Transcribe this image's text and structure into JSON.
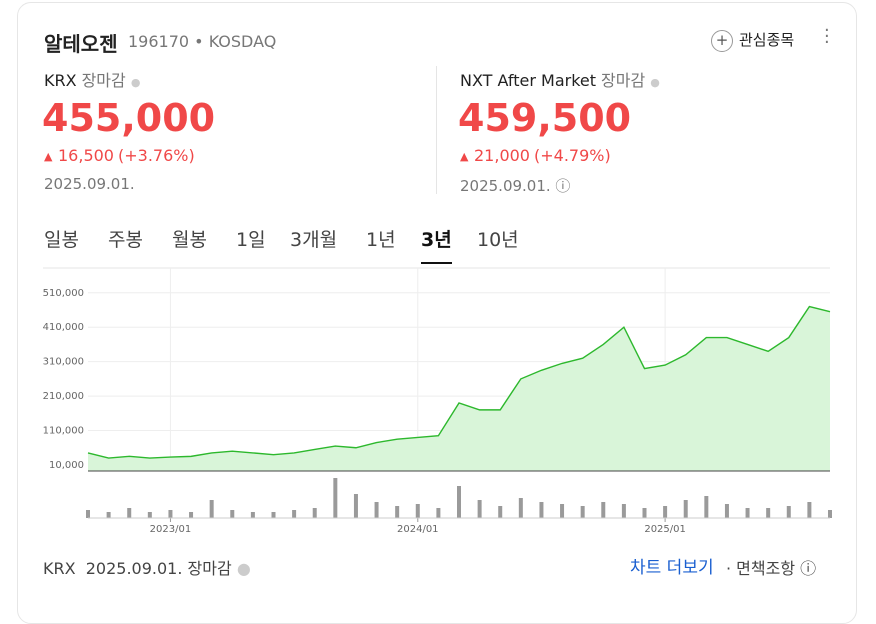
{
  "header": {
    "name": "알테오젠",
    "code": "196170",
    "market": "KOSDAQ",
    "watch": "관심종목"
  },
  "quotes": [
    {
      "exchange": "KRX",
      "status": "장마감",
      "price": "455,000",
      "change": "16,500",
      "rate": "(+3.76%)",
      "date": "2025.09.01."
    },
    {
      "exchange": "NXT After Market",
      "status": "장마감",
      "price": "459,500",
      "change": "21,000",
      "rate": "(+4.79%)",
      "date": "2025.09.01."
    }
  ],
  "tabs": [
    "일봉",
    "주봉",
    "월봉",
    "1일",
    "3개월",
    "1년",
    "3년",
    "10년"
  ],
  "selected_tab": "3년",
  "chart_data": {
    "type": "line",
    "color": "#2db82d",
    "fill": "#d9f5d9",
    "bar_color": "#9a9a9a",
    "x": [
      "2022/09",
      "2022/10",
      "2022/11",
      "2022/12",
      "2023/01",
      "2023/02",
      "2023/03",
      "2023/04",
      "2023/05",
      "2023/06",
      "2023/07",
      "2023/08",
      "2023/09",
      "2023/10",
      "2023/11",
      "2023/12",
      "2024/01",
      "2024/02",
      "2024/03",
      "2024/04",
      "2024/05",
      "2024/06",
      "2024/07",
      "2024/08",
      "2024/09",
      "2024/10",
      "2024/11",
      "2024/12",
      "2025/01",
      "2025/02",
      "2025/03",
      "2025/04",
      "2025/05",
      "2025/06",
      "2025/07",
      "2025/08",
      "2025/09"
    ],
    "values": [
      45000,
      30000,
      35000,
      30000,
      33000,
      35000,
      45000,
      50000,
      45000,
      40000,
      45000,
      55000,
      65000,
      60000,
      75000,
      85000,
      90000,
      95000,
      190000,
      170000,
      170000,
      260000,
      285000,
      305000,
      320000,
      360000,
      410000,
      290000,
      300000,
      330000,
      380000,
      380000,
      360000,
      340000,
      380000,
      470000,
      455000
    ],
    "volume": [
      4,
      3,
      5,
      3,
      4,
      3,
      9,
      4,
      3,
      3,
      4,
      5,
      20,
      12,
      8,
      6,
      7,
      5,
      16,
      9,
      6,
      10,
      8,
      7,
      6,
      8,
      7,
      5,
      6,
      9,
      11,
      7,
      5,
      5,
      6,
      8,
      4
    ],
    "xticks": [
      "2023/01",
      "2024/01",
      "2025/01"
    ],
    "ylim": [
      -7500,
      582000
    ],
    "yticks": [
      {
        "value": 10000,
        "label": "10,000"
      },
      {
        "value": 110000,
        "label": "110,000"
      },
      {
        "value": 210000,
        "label": "210,000"
      },
      {
        "value": 310000,
        "label": "310,000"
      },
      {
        "value": 410000,
        "label": "410,000"
      },
      {
        "value": 510000,
        "label": "510,000"
      }
    ],
    "grid": true
  },
  "footer": {
    "exchange": "KRX",
    "date": "2025.09.01.",
    "status": "장마감",
    "more": "차트 더보기",
    "disclaimer": "면책조항"
  }
}
